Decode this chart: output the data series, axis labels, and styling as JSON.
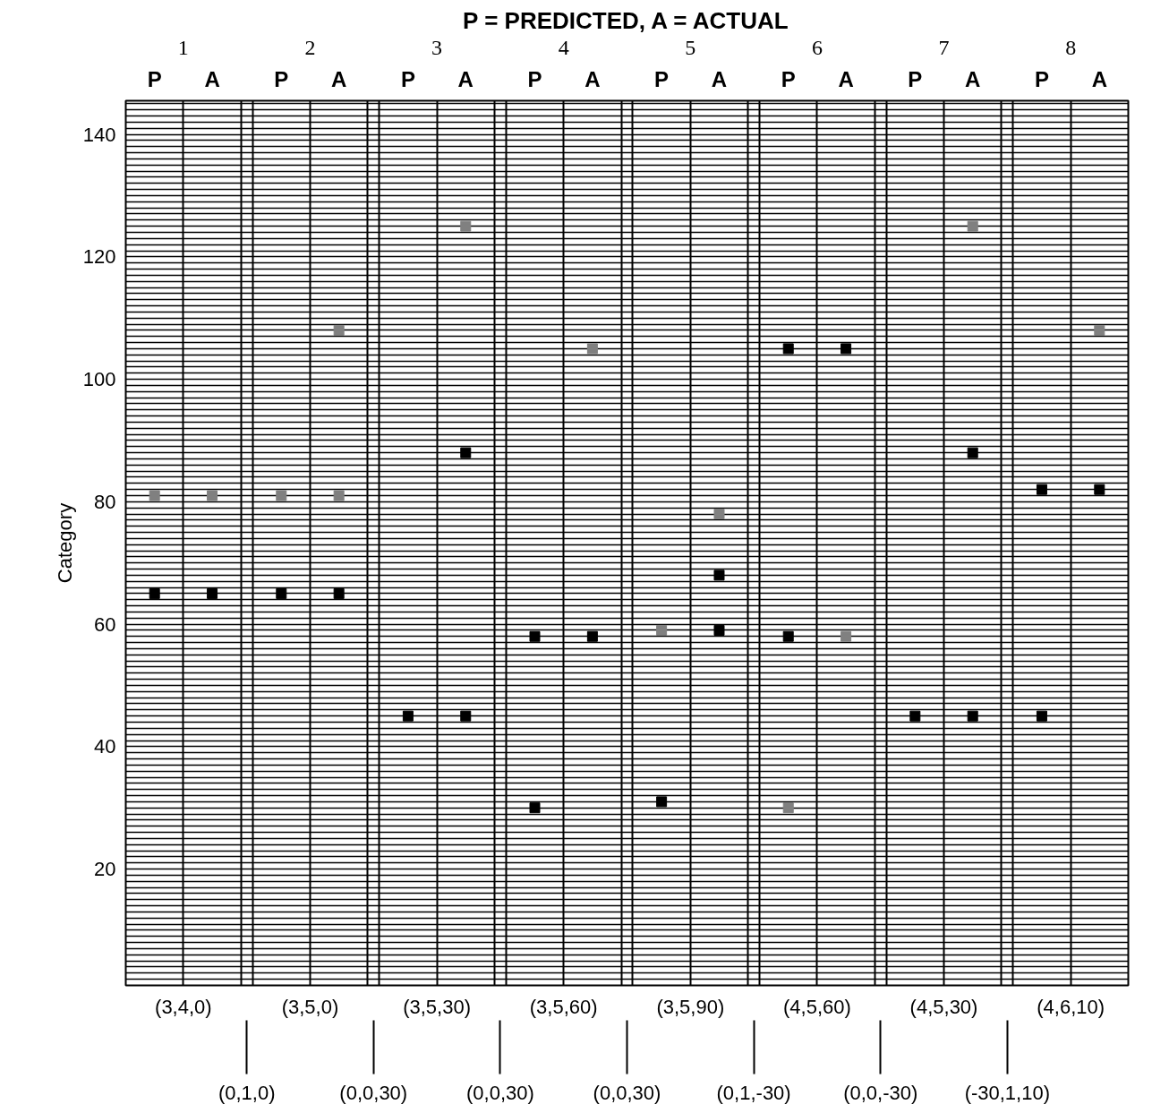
{
  "chart_data": {
    "type": "scatter",
    "title": "P = PREDICTED, A = ACTUAL",
    "ylabel": "Category",
    "categories": [
      "P",
      "A",
      "P",
      "A",
      "P",
      "A",
      "P",
      "A",
      "P",
      "A",
      "P",
      "A",
      "P",
      "A",
      "P",
      "A"
    ],
    "series": [
      {
        "color": "#000000",
        "values": [
          65,
          65,
          65,
          65,
          45,
          45,
          58,
          58,
          31,
          68,
          105,
          105,
          45,
          45,
          82,
          82
        ]
      },
      {
        "color": "#000000",
        "values": [
          null,
          null,
          null,
          null,
          null,
          88,
          30,
          null,
          null,
          59,
          58,
          null,
          null,
          88,
          45,
          null
        ]
      },
      {
        "color": "#808080",
        "values": [
          81,
          81,
          81,
          81,
          null,
          125,
          null,
          105,
          59,
          78,
          30,
          58,
          null,
          125,
          null,
          108
        ]
      },
      {
        "color": "#808080",
        "values": [
          null,
          null,
          null,
          108,
          null,
          null,
          null,
          null,
          null,
          null,
          null,
          null,
          null,
          null,
          null,
          null
        ]
      }
    ],
    "ylim": [
      1,
      145.5
    ],
    "yticks": [
      {
        "value": 2,
        "label": null
      },
      {
        "value": 3,
        "label": null
      },
      {
        "value": 4,
        "label": null
      },
      {
        "value": 5,
        "label": null
      },
      {
        "value": 6,
        "label": null
      },
      {
        "value": 7,
        "label": null
      },
      {
        "value": 8,
        "label": null
      },
      {
        "value": 9,
        "label": null
      },
      {
        "value": 10,
        "label": null
      },
      {
        "value": 11,
        "label": null
      },
      {
        "value": 12,
        "label": null
      },
      {
        "value": 13,
        "label": null
      },
      {
        "value": 14,
        "label": null
      },
      {
        "value": 15,
        "label": null
      },
      {
        "value": 16,
        "label": null
      },
      {
        "value": 17,
        "label": null
      },
      {
        "value": 18,
        "label": null
      },
      {
        "value": 19,
        "label": null
      },
      20,
      {
        "value": 21,
        "label": null
      },
      {
        "value": 22,
        "label": null
      },
      {
        "value": 23,
        "label": null
      },
      {
        "value": 24,
        "label": null
      },
      {
        "value": 25,
        "label": null
      },
      {
        "value": 26,
        "label": null
      },
      {
        "value": 27,
        "label": null
      },
      {
        "value": 28,
        "label": null
      },
      {
        "value": 29,
        "label": null
      },
      {
        "value": 30,
        "label": null
      },
      {
        "value": 31,
        "label": null
      },
      {
        "value": 32,
        "label": null
      },
      {
        "value": 33,
        "label": null
      },
      {
        "value": 34,
        "label": null
      },
      {
        "value": 35,
        "label": null
      },
      {
        "value": 36,
        "label": null
      },
      {
        "value": 37,
        "label": null
      },
      {
        "value": 38,
        "label": null
      },
      {
        "value": 39,
        "label": null
      },
      40,
      {
        "value": 41,
        "label": null
      },
      {
        "value": 42,
        "label": null
      },
      {
        "value": 43,
        "label": null
      },
      {
        "value": 44,
        "label": null
      },
      {
        "value": 45,
        "label": null
      },
      {
        "value": 46,
        "label": null
      },
      {
        "value": 47,
        "label": null
      },
      {
        "value": 48,
        "label": null
      },
      {
        "value": 49,
        "label": null
      },
      {
        "value": 50,
        "label": null
      },
      {
        "value": 51,
        "label": null
      },
      {
        "value": 52,
        "label": null
      },
      {
        "value": 53,
        "label": null
      },
      {
        "value": 54,
        "label": null
      },
      {
        "value": 55,
        "label": null
      },
      {
        "value": 56,
        "label": null
      },
      {
        "value": 57,
        "label": null
      },
      {
        "value": 58,
        "label": null
      },
      {
        "value": 59,
        "label": null
      },
      60,
      {
        "value": 61,
        "label": null
      },
      {
        "value": 62,
        "label": null
      },
      {
        "value": 63,
        "label": null
      },
      {
        "value": 64,
        "label": null
      },
      {
        "value": 65,
        "label": null
      },
      {
        "value": 66,
        "label": null
      },
      {
        "value": 67,
        "label": null
      },
      {
        "value": 68,
        "label": null
      },
      {
        "value": 69,
        "label": null
      },
      {
        "value": 70,
        "label": null
      },
      {
        "value": 71,
        "label": null
      },
      {
        "value": 72,
        "label": null
      },
      {
        "value": 73,
        "label": null
      },
      {
        "value": 74,
        "label": null
      },
      {
        "value": 75,
        "label": null
      },
      {
        "value": 76,
        "label": null
      },
      {
        "value": 77,
        "label": null
      },
      {
        "value": 78,
        "label": null
      },
      {
        "value": 79,
        "label": null
      },
      80,
      {
        "value": 81,
        "label": null
      },
      {
        "value": 82,
        "label": null
      },
      {
        "value": 83,
        "label": null
      },
      {
        "value": 84,
        "label": null
      },
      {
        "value": 85,
        "label": null
      },
      {
        "value": 86,
        "label": null
      },
      {
        "value": 87,
        "label": null
      },
      {
        "value": 88,
        "label": null
      },
      {
        "value": 89,
        "label": null
      },
      {
        "value": 90,
        "label": null
      },
      {
        "value": 91,
        "label": null
      },
      {
        "value": 92,
        "label": null
      },
      {
        "value": 93,
        "label": null
      },
      {
        "value": 94,
        "label": null
      },
      {
        "value": 95,
        "label": null
      },
      {
        "value": 96,
        "label": null
      },
      {
        "value": 97,
        "label": null
      },
      {
        "value": 98,
        "label": null
      },
      {
        "value": 99,
        "label": null
      },
      100,
      {
        "value": 101,
        "label": null
      },
      {
        "value": 102,
        "label": null
      },
      {
        "value": 103,
        "label": null
      },
      {
        "value": 104,
        "label": null
      },
      {
        "value": 105,
        "label": null
      },
      {
        "value": 106,
        "label": null
      },
      {
        "value": 107,
        "label": null
      },
      {
        "value": 108,
        "label": null
      },
      {
        "value": 109,
        "label": null
      },
      {
        "value": 110,
        "label": null
      },
      {
        "value": 111,
        "label": null
      },
      {
        "value": 112,
        "label": null
      },
      {
        "value": 113,
        "label": null
      },
      {
        "value": 114,
        "label": null
      },
      {
        "value": 115,
        "label": null
      },
      {
        "value": 116,
        "label": null
      },
      {
        "value": 117,
        "label": null
      },
      {
        "value": 118,
        "label": null
      },
      {
        "value": 119,
        "label": null
      },
      120,
      {
        "value": 121,
        "label": null
      },
      {
        "value": 122,
        "label": null
      },
      {
        "value": 123,
        "label": null
      },
      {
        "value": 124,
        "label": null
      },
      {
        "value": 125,
        "label": null
      },
      {
        "value": 126,
        "label": null
      },
      {
        "value": 127,
        "label": null
      },
      {
        "value": 128,
        "label": null
      },
      {
        "value": 129,
        "label": null
      },
      {
        "value": 130,
        "label": null
      },
      {
        "value": 131,
        "label": null
      },
      {
        "value": 132,
        "label": null
      },
      {
        "value": 133,
        "label": null
      },
      {
        "value": 134,
        "label": null
      },
      {
        "value": 135,
        "label": null
      },
      {
        "value": 136,
        "label": null
      },
      {
        "value": 137,
        "label": null
      },
      {
        "value": 138,
        "label": null
      },
      {
        "value": 139,
        "label": null
      },
      140,
      {
        "value": 141,
        "label": null
      },
      {
        "value": 142,
        "label": null
      },
      {
        "value": 143,
        "label": null
      },
      {
        "value": 144,
        "label": null
      },
      {
        "value": 145,
        "label": null
      }
    ],
    "grid": "y",
    "marker": "square",
    "annotations": [
      "1",
      "2",
      "3",
      "4",
      "5",
      "6",
      "7",
      "8",
      "(3,4,0)",
      "(3,5,0)",
      "(3,5,30)",
      "(3,5,60)",
      "(3,5,90)",
      "(4,5,60)",
      "(4,5,30)",
      "(4,6,10)",
      "(0,1,0)",
      "(0,0,30)",
      "(0,0,30)",
      "(0,0,30)",
      "(0,1,-30)",
      "(0,0,-30)",
      "(-30,1,10)"
    ]
  }
}
